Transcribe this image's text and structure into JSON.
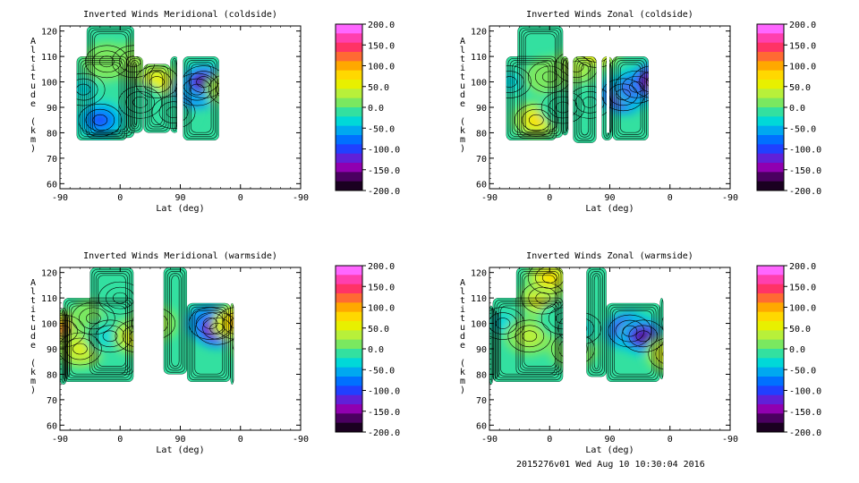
{
  "footer": "2015276v01 Wed Aug 10 10:30:04 2016",
  "colorbar": {
    "tick_labels": [
      "200.0",
      "150.0",
      "100.0",
      "50.0",
      "0.0",
      "-50.0",
      "-100.0",
      "-150.0",
      "-200.0"
    ],
    "colors": [
      "#ff66ff",
      "#ff3fae",
      "#ff3366",
      "#ff6a33",
      "#ffa800",
      "#ffd800",
      "#e8f000",
      "#b8f03a",
      "#7ae860",
      "#33e0a0",
      "#00d8d8",
      "#00a8f0",
      "#0070ff",
      "#2040ff",
      "#6020d8",
      "#9000b0",
      "#4a0060",
      "#1a0020"
    ]
  },
  "chart_data": [
    {
      "type": "heatmap",
      "title": "Inverted Winds Meridional (coldside)",
      "xlabel": "Lat (deg)",
      "ylabel": "Altitude (km)",
      "x_tick_labels": [
        "-90",
        "0",
        "90",
        "0",
        "-90"
      ],
      "y_ticks": [
        60,
        70,
        80,
        90,
        100,
        110,
        120
      ],
      "ylim": [
        58,
        122
      ],
      "colorbar_range": [
        -200,
        200
      ],
      "blobs": [
        {
          "x": -55,
          "y": 97,
          "value": -40
        },
        {
          "x": -20,
          "y": 108,
          "value": 15
        },
        {
          "x": 20,
          "y": 108,
          "value": 25
        },
        {
          "x": 55,
          "y": 100,
          "value": 60
        },
        {
          "x": 30,
          "y": 92,
          "value": -20
        },
        {
          "x": -30,
          "y": 85,
          "value": -90
        },
        {
          "x": 80,
          "y": 88,
          "value": 0
        },
        {
          "x": 115,
          "y": 97,
          "value": -200
        },
        {
          "x": 125,
          "y": 100,
          "value": -170
        },
        {
          "x": 165,
          "y": 97,
          "value": 45
        },
        {
          "x": 185,
          "y": 92,
          "value": -10
        },
        {
          "x": 215,
          "y": 95,
          "value": -50
        },
        {
          "x": 230,
          "y": 88,
          "value": -110
        }
      ]
    },
    {
      "type": "heatmap",
      "title": "Inverted Winds Zonal (coldside)",
      "xlabel": "Lat (deg)",
      "ylabel": "Altitude (km)",
      "x_tick_labels": [
        "-90",
        "0",
        "90",
        "0",
        "-90"
      ],
      "y_ticks": [
        60,
        70,
        80,
        90,
        100,
        110,
        120
      ],
      "ylim": [
        58,
        122
      ],
      "colorbar_range": [
        -200,
        200
      ],
      "blobs": [
        {
          "x": -60,
          "y": 100,
          "value": -40
        },
        {
          "x": -20,
          "y": 85,
          "value": 70
        },
        {
          "x": 0,
          "y": 102,
          "value": 15
        },
        {
          "x": 40,
          "y": 106,
          "value": 35
        },
        {
          "x": 60,
          "y": 92,
          "value": -10
        },
        {
          "x": 70,
          "y": 112,
          "value": 60
        },
        {
          "x": 20,
          "y": 90,
          "value": -20
        },
        {
          "x": 110,
          "y": 95,
          "value": -200
        },
        {
          "x": 130,
          "y": 98,
          "value": -160
        },
        {
          "x": 155,
          "y": 100,
          "value": -190
        },
        {
          "x": 200,
          "y": 87,
          "value": 200
        },
        {
          "x": 190,
          "y": 97,
          "value": 90
        },
        {
          "x": 215,
          "y": 100,
          "value": 20
        }
      ]
    },
    {
      "type": "heatmap",
      "title": "Inverted Winds Meridional (warmside)",
      "xlabel": "Lat (deg)",
      "ylabel": "Altitude (km)",
      "x_tick_labels": [
        "-90",
        "0",
        "90",
        "0",
        "-90"
      ],
      "y_ticks": [
        60,
        70,
        80,
        90,
        100,
        110,
        120
      ],
      "ylim": [
        58,
        122
      ],
      "colorbar_range": [
        -200,
        200
      ],
      "blobs": [
        {
          "x": -85,
          "y": 97,
          "value": 130
        },
        {
          "x": -60,
          "y": 90,
          "value": 45
        },
        {
          "x": -40,
          "y": 102,
          "value": 20
        },
        {
          "x": -15,
          "y": 95,
          "value": -40
        },
        {
          "x": 0,
          "y": 110,
          "value": -20
        },
        {
          "x": 25,
          "y": 95,
          "value": 60
        },
        {
          "x": 50,
          "y": 100,
          "value": 30
        },
        {
          "x": 135,
          "y": 100,
          "value": -200
        },
        {
          "x": 145,
          "y": 98,
          "value": -180
        },
        {
          "x": 175,
          "y": 100,
          "value": 100
        },
        {
          "x": 200,
          "y": 92,
          "value": 20
        },
        {
          "x": 215,
          "y": 105,
          "value": -50
        }
      ]
    },
    {
      "type": "heatmap",
      "title": "Inverted Winds Zonal (warmside)",
      "xlabel": "Lat (deg)",
      "ylabel": "Altitude (km)",
      "x_tick_labels": [
        "-90",
        "0",
        "90",
        "0",
        "-90"
      ],
      "y_ticks": [
        60,
        70,
        80,
        90,
        100,
        110,
        120
      ],
      "ylim": [
        58,
        122
      ],
      "colorbar_range": [
        -200,
        200
      ],
      "blobs": [
        {
          "x": -70,
          "y": 100,
          "value": -30
        },
        {
          "x": -30,
          "y": 95,
          "value": 30
        },
        {
          "x": -10,
          "y": 110,
          "value": 60
        },
        {
          "x": 0,
          "y": 118,
          "value": 70
        },
        {
          "x": 20,
          "y": 102,
          "value": -20
        },
        {
          "x": 35,
          "y": 90,
          "value": 10
        },
        {
          "x": 45,
          "y": 98,
          "value": -30
        },
        {
          "x": 120,
          "y": 97,
          "value": -200
        },
        {
          "x": 140,
          "y": 95,
          "value": -170
        },
        {
          "x": 180,
          "y": 88,
          "value": 70
        },
        {
          "x": 210,
          "y": 90,
          "value": 90
        },
        {
          "x": 200,
          "y": 100,
          "value": 0
        }
      ]
    }
  ]
}
